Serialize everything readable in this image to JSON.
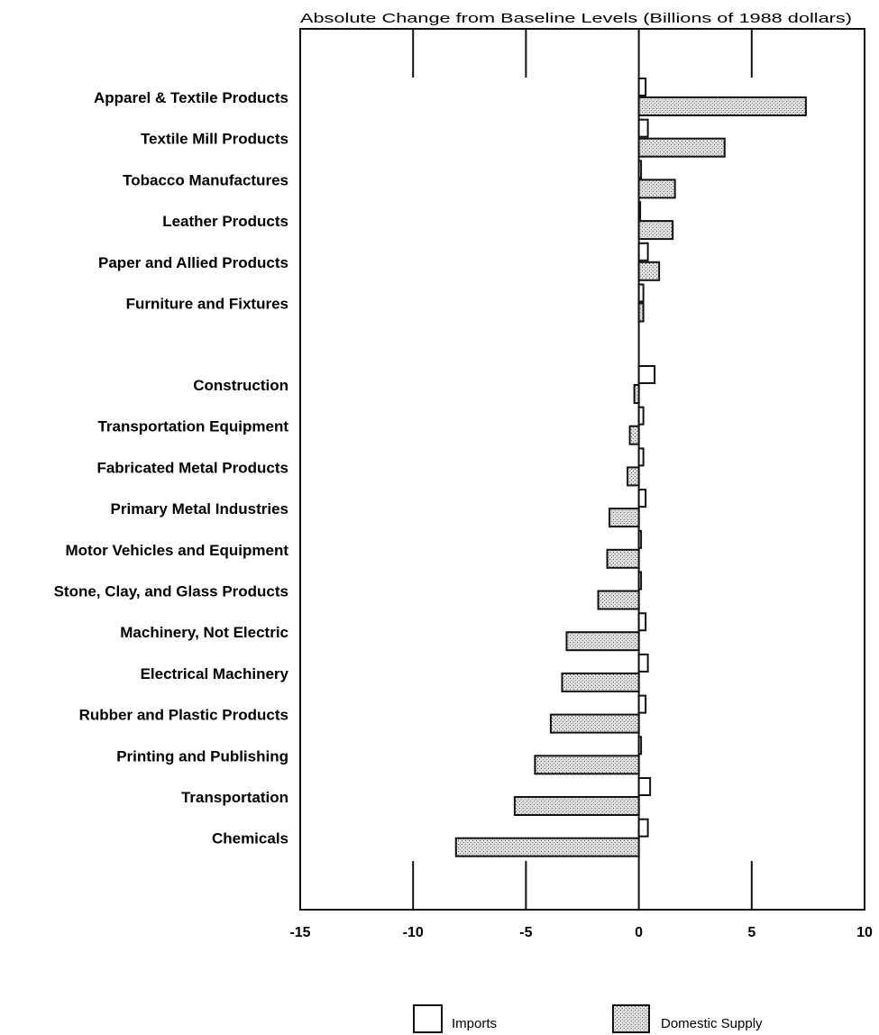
{
  "chart_data": {
    "type": "bar",
    "orientation": "horizontal",
    "title": "Absolute Change from Baseline Levels (Billions of 1988 dollars)",
    "xlabel": "",
    "ylabel": "",
    "xlim": [
      -15,
      10
    ],
    "xticks": [
      -15,
      -10,
      -5,
      0,
      5,
      10
    ],
    "xtick_labels": [
      "-15",
      "-10",
      "-5",
      "0",
      "5",
      "10"
    ],
    "grid": false,
    "legend_position": "bottom",
    "colors": {
      "imports": "#ffffff",
      "domestic_supply": "#cfcfcf",
      "outline": "#111111"
    },
    "groups": [
      {
        "categories": [
          "Apparel & Textile Products",
          "Textile Mill Products",
          "Tobacco Manufactures",
          "Leather Products",
          "Paper and Allied Products",
          "Furniture and Fixtures"
        ]
      },
      {
        "categories": [
          "Construction",
          "Transportation Equipment",
          "Fabricated Metal Products",
          "Primary Metal Industries",
          "Motor Vehicles and Equipment",
          "Stone, Clay, and Glass Products",
          "Machinery, Not Electric",
          "Electrical Machinery",
          "Rubber and Plastic Products",
          "Printing and Publishing",
          "Transportation",
          "Chemicals"
        ]
      }
    ],
    "categories": [
      "Apparel & Textile Products",
      "Textile Mill Products",
      "Tobacco Manufactures",
      "Leather Products",
      "Paper and Allied Products",
      "Furniture and Fixtures",
      "Construction",
      "Transportation Equipment",
      "Fabricated Metal Products",
      "Primary Metal Industries",
      "Motor Vehicles and Equipment",
      "Stone, Clay, and Glass Products",
      "Machinery, Not Electric",
      "Electrical Machinery",
      "Rubber and Plastic Products",
      "Printing and Publishing",
      "Transportation",
      "Chemicals"
    ],
    "series": [
      {
        "name": "Imports",
        "values": [
          0.3,
          0.4,
          0.1,
          0.0,
          0.4,
          0.2,
          0.7,
          0.2,
          0.2,
          0.3,
          0.1,
          0.1,
          0.3,
          0.4,
          0.3,
          0.1,
          0.5,
          0.4
        ]
      },
      {
        "name": "Domestic Supply",
        "values": [
          7.4,
          3.8,
          1.6,
          1.5,
          0.9,
          0.2,
          -0.2,
          -0.4,
          -0.5,
          -1.3,
          -1.4,
          -1.8,
          -3.2,
          -3.4,
          -3.9,
          -4.6,
          -5.5,
          -8.1
        ]
      }
    ]
  }
}
